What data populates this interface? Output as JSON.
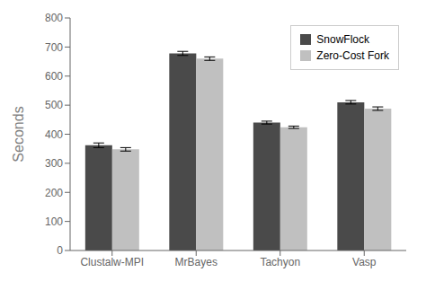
{
  "chart_data": {
    "type": "bar",
    "categories": [
      "Clustalw-MPI",
      "MrBayes",
      "Tachyon",
      "Vasp"
    ],
    "series": [
      {
        "name": "SnowFlock",
        "color": "#4a4a4a",
        "values": [
          362,
          678,
          440,
          510
        ],
        "errors": [
          8,
          7,
          5,
          6
        ]
      },
      {
        "name": "Zero-Cost Fork",
        "color": "#c0c0c0",
        "values": [
          348,
          660,
          424,
          488
        ],
        "errors": [
          6,
          6,
          4,
          6
        ]
      }
    ],
    "ylabel": "Seconds",
    "ylim": [
      0,
      800
    ],
    "yticks": [
      0,
      100,
      200,
      300,
      400,
      500,
      600,
      700,
      800
    ],
    "legend": "upper right",
    "grid": false
  }
}
